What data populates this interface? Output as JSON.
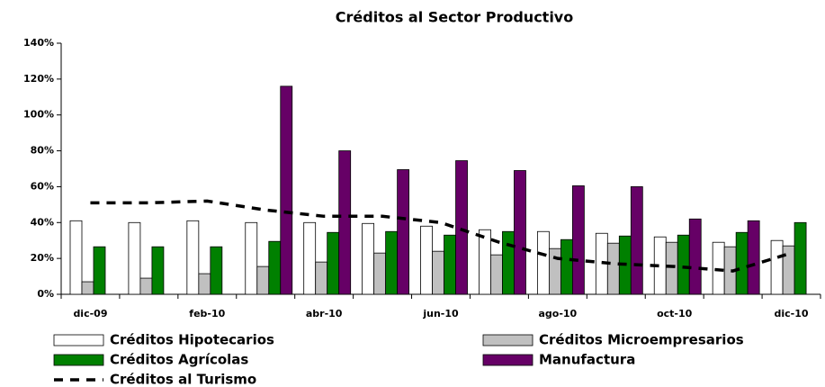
{
  "chart_data": {
    "type": "bar",
    "title": "Créditos al Sector Productivo",
    "categories": [
      "dic-09",
      null,
      "feb-10",
      null,
      "abr-10",
      null,
      "jun-10",
      null,
      "ago-10",
      null,
      "oct-10",
      null,
      "dic-10"
    ],
    "series": [
      {
        "name": "Créditos Hipotecarios",
        "color": "#ffffff",
        "values": [
          41,
          40,
          41,
          40,
          40,
          39.5,
          38,
          36,
          35,
          34,
          32,
          29,
          30
        ]
      },
      {
        "name": "Créditos Microempresarios",
        "color": "#c0c0c0",
        "values": [
          7,
          9,
          11.5,
          15.5,
          18,
          23,
          24,
          22,
          25.5,
          28.5,
          29,
          26.5,
          27
        ]
      },
      {
        "name": "Créditos Agrícolas",
        "color": "#008000",
        "values": [
          26.5,
          26.5,
          26.5,
          29.5,
          34.5,
          35,
          33,
          35,
          30.5,
          32.5,
          33,
          34.5,
          40
        ]
      },
      {
        "name": "Manufactura",
        "color": "#660066",
        "values": [
          null,
          null,
          null,
          116,
          80,
          69.5,
          74.5,
          69,
          60.5,
          60,
          42,
          41,
          null
        ]
      },
      {
        "name": "Créditos al Turismo",
        "color": "#000000",
        "type": "line",
        "values": [
          51,
          51,
          52,
          47,
          43.5,
          43.5,
          40,
          29,
          20,
          17,
          15.5,
          13,
          23
        ]
      }
    ],
    "ylim": [
      0,
      140
    ],
    "yticks": [
      {
        "value": 0,
        "label": "0%"
      },
      {
        "value": 20,
        "label": "20%"
      },
      {
        "value": 40,
        "label": "40%"
      },
      {
        "value": 60,
        "label": "60%"
      },
      {
        "value": 80,
        "label": "80%"
      },
      {
        "value": 100,
        "label": "100%"
      },
      {
        "value": 120,
        "label": "120%"
      },
      {
        "value": 140,
        "label": "140%"
      }
    ],
    "grid": false,
    "legend": "bottom"
  }
}
